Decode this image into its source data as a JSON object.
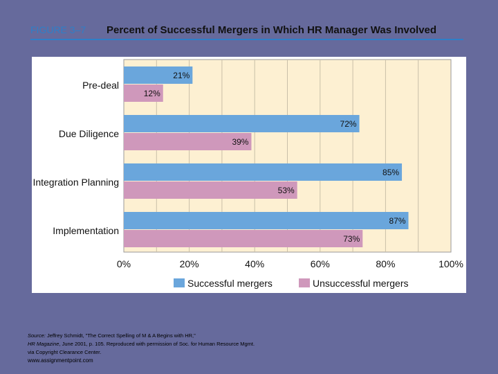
{
  "header": {
    "figure_label": "FIGURE 3–7",
    "title": "Percent of Successful Mergers in Which HR Manager Was Involved"
  },
  "colors": {
    "background": "#666a9c",
    "plot_background": "#fdf0d2",
    "successful": "#6aa6dc",
    "unsuccessful": "#cf98bb",
    "accent": "#2e7fc8"
  },
  "chart_data": {
    "type": "bar",
    "orientation": "horizontal",
    "categories": [
      "Pre-deal",
      "Due Diligence",
      "Integration Planning",
      "Implementation"
    ],
    "series": [
      {
        "name": "Successful mergers",
        "values": [
          21,
          72,
          85,
          87
        ],
        "labels": [
          "21%",
          "72%",
          "85%",
          "87%"
        ]
      },
      {
        "name": "Unsuccessful mergers",
        "values": [
          12,
          39,
          53,
          73
        ],
        "labels": [
          "12%",
          "39%",
          "53%",
          "73%"
        ]
      }
    ],
    "xlim": [
      0,
      100
    ],
    "xticks": [
      "0%",
      "20%",
      "40%",
      "60%",
      "80%",
      "100%"
    ],
    "grid": true,
    "legend_position": "bottom"
  },
  "source": {
    "prefix": "Source:",
    "text1": " Jeffrey Schmidt, \"The Correct Spelling of M & A Begins with HR,\"",
    "magazine": "HR Magazine",
    "text2": ", June 2001, p. 105. Reproduced with permission of Soc. for Human Resource Mgmt. via Copyright Clearance Center."
  },
  "website": "www.assignmentpoint.com"
}
